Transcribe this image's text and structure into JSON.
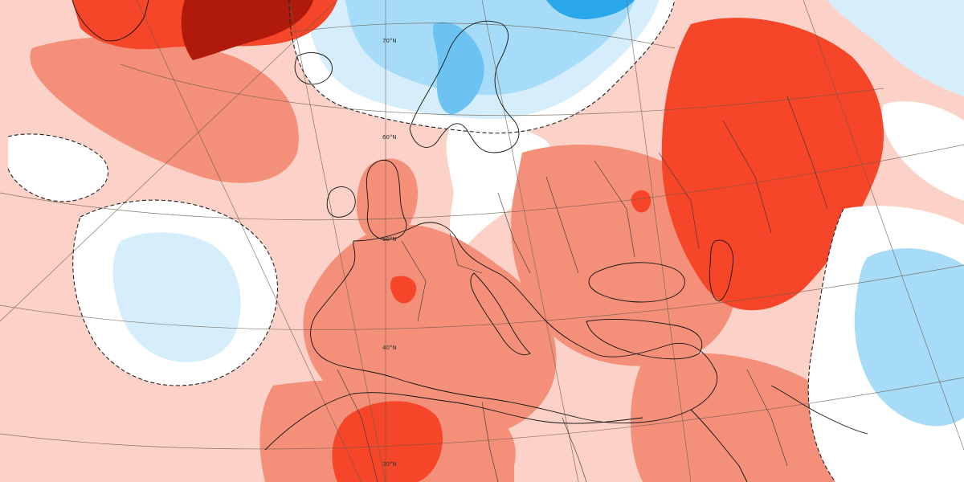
{
  "latitude_labels": [
    {
      "id": "lat-70n",
      "text": "70°N"
    },
    {
      "id": "lat-60n",
      "text": "60°N"
    },
    {
      "id": "lat-50n",
      "text": "50°N"
    },
    {
      "id": "lat-40n",
      "text": "40°N"
    },
    {
      "id": "lat-30n",
      "text": "30°N"
    }
  ],
  "anomaly_colors": {
    "strong_warm": "#b01a0a",
    "warm_3": "#f5462a",
    "warm_2": "#f4907a",
    "warm_1": "#fcd2c8",
    "neutral": "#ffffff",
    "cool_1": "#d6eefc",
    "cool_2": "#a6dcf8",
    "cool_3": "#6cc3f2",
    "strong_cool": "#2aa6ea"
  },
  "features": {
    "zero_contour_style": "dashed",
    "graticule": true,
    "coastlines": true,
    "country_borders": true
  }
}
